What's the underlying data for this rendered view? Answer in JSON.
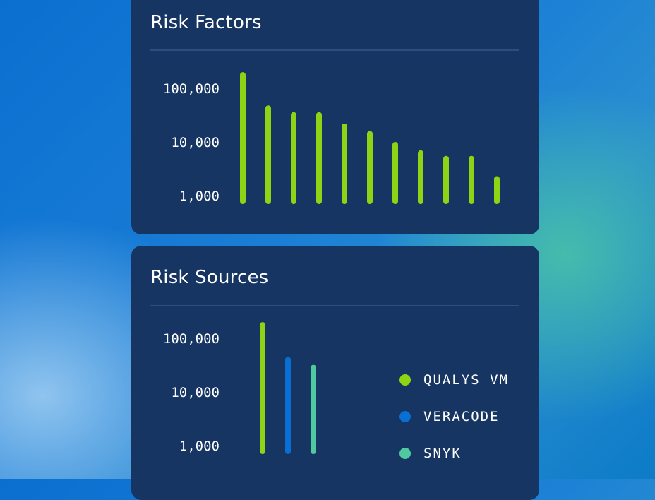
{
  "chart_data": [
    {
      "type": "bar",
      "title": "Risk Factors",
      "yscale": "log",
      "ylim": [
        1000,
        200000
      ],
      "yticks": [
        1000,
        10000,
        100000
      ],
      "ytick_labels": [
        "1,000",
        "10,000",
        "100,000"
      ],
      "categories": [
        "",
        "",
        "",
        "",
        "",
        "",
        "",
        "",
        "",
        "",
        ""
      ],
      "series": [
        {
          "color": "#8fd414",
          "values": [
            200000,
            48000,
            36000,
            36000,
            22000,
            16000,
            10000,
            7000,
            5500,
            5500,
            2300
          ]
        }
      ]
    },
    {
      "type": "bar",
      "title": "Risk Sources",
      "yscale": "log",
      "ylim": [
        1000,
        200000
      ],
      "yticks": [
        1000,
        10000,
        100000
      ],
      "ytick_labels": [
        "1,000",
        "10,000",
        "100,000"
      ],
      "categories": [
        "QUALYS VM",
        "VERACODE",
        "SNYK"
      ],
      "series": [
        {
          "name": "QUALYS VM",
          "color": "#8fd414",
          "value": 200000
        },
        {
          "name": "VERACODE",
          "color": "#0a6fd2",
          "value": 45000
        },
        {
          "name": "SNYK",
          "color": "#4ec9a0",
          "value": 32000
        }
      ],
      "legend": "right"
    }
  ]
}
